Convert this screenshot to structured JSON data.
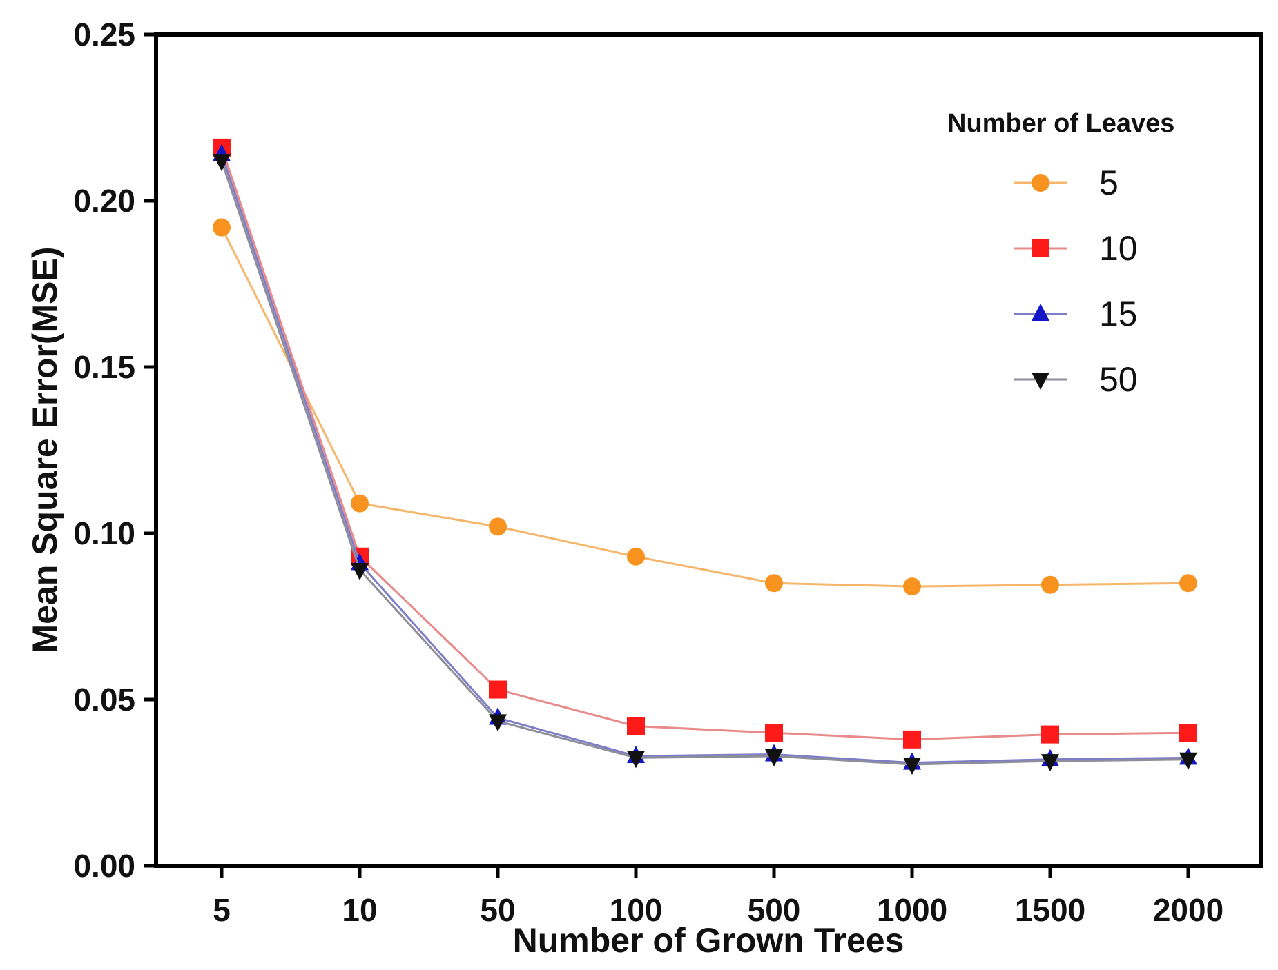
{
  "chart_data": {
    "type": "line",
    "title": "",
    "xlabel": "Number of Grown Trees",
    "ylabel": "Mean Square Error(MSE)",
    "categories": [
      "5",
      "10",
      "50",
      "100",
      "500",
      "1000",
      "1500",
      "2000"
    ],
    "ylim": [
      0,
      0.25
    ],
    "yticks": [
      "0.00",
      "0.05",
      "0.10",
      "0.15",
      "0.20",
      "0.25"
    ],
    "grid": false,
    "legend": {
      "title": "Number of Leaves",
      "placement": "top-right"
    },
    "series": [
      {
        "name": "5",
        "marker": "circle",
        "color": "#F7931E",
        "line_color": "#F5B56A",
        "values": [
          0.192,
          0.109,
          0.102,
          0.093,
          0.085,
          0.084,
          0.0845,
          0.085
        ]
      },
      {
        "name": "10",
        "marker": "square",
        "color": "#FF1A1A",
        "line_color": "#E88A8A",
        "values": [
          0.216,
          0.093,
          0.053,
          0.042,
          0.04,
          0.038,
          0.0395,
          0.04
        ]
      },
      {
        "name": "15",
        "marker": "triangle-up",
        "color": "#1515C8",
        "line_color": "#7E7EC8",
        "values": [
          0.214,
          0.091,
          0.0445,
          0.033,
          0.0335,
          0.031,
          0.032,
          0.0325
        ]
      },
      {
        "name": "50",
        "marker": "triangle-down",
        "color": "#111111",
        "line_color": "#8E8E9A",
        "values": [
          0.212,
          0.089,
          0.0435,
          0.0325,
          0.033,
          0.0305,
          0.0315,
          0.032
        ]
      }
    ]
  }
}
